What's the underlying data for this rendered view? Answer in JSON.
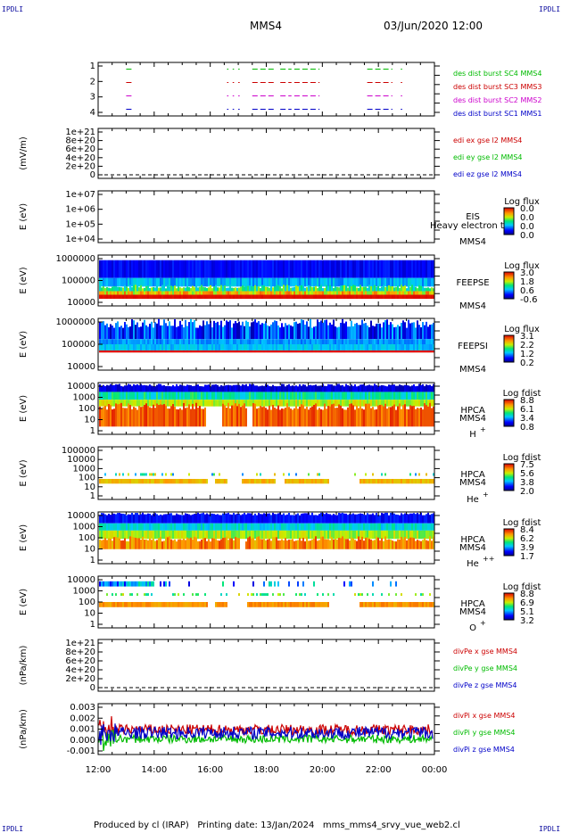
{
  "corner_label": "IPDLI",
  "header": {
    "spacecraft": "MMS4",
    "datetime": "03/Jun/2020 12:00"
  },
  "footer": {
    "text": "Produced by cl (IRAP)   Printing date: 13/Jan/2024   mms_mms4_srvy_vue_web2.cl"
  },
  "colors": {
    "sc1": "#0000c8",
    "sc2": "#cc00cc",
    "sc3": "#cc0000",
    "sc4": "#00bb00",
    "axis": "#000000"
  },
  "chart_data": {
    "type": "multi-panel time series and spectrograms",
    "x_ticks": [
      "12:00",
      "14:00",
      "16:00",
      "18:00",
      "20:00",
      "22:00",
      "00:00"
    ],
    "x_range_hours": [
      12,
      24
    ],
    "panels": [
      {
        "id": "burst",
        "type": "line",
        "ylabel": "",
        "ylim": [
          0.5,
          4.5
        ],
        "yticks": [
          "1",
          "2",
          "3",
          "4"
        ],
        "series": [
          {
            "name": "des dist burst SC1 MMS1",
            "level": 1,
            "color": "#0000c8",
            "intervals": [
              [
                13.0,
                13.2
              ],
              [
                16.6,
                16.65
              ],
              [
                16.8,
                16.85
              ],
              [
                17.0,
                17.05
              ],
              [
                17.5,
                18.3
              ],
              [
                18.5,
                18.9
              ],
              [
                19.0,
                19.9
              ],
              [
                21.6,
                22.5
              ],
              [
                22.8,
                22.85
              ]
            ]
          },
          {
            "name": "des dist burst SC2 MMS2",
            "level": 2,
            "color": "#cc00cc",
            "intervals": [
              [
                13.0,
                13.2
              ],
              [
                16.6,
                16.65
              ],
              [
                16.8,
                16.85
              ],
              [
                17.0,
                17.05
              ],
              [
                17.5,
                18.3
              ],
              [
                18.5,
                18.9
              ],
              [
                19.0,
                19.9
              ],
              [
                21.6,
                22.5
              ],
              [
                22.8,
                22.85
              ]
            ]
          },
          {
            "name": "des dist burst SC3 MMS3",
            "level": 3,
            "color": "#cc0000",
            "intervals": [
              [
                13.0,
                13.2
              ],
              [
                16.6,
                16.65
              ],
              [
                16.8,
                16.85
              ],
              [
                17.0,
                17.05
              ],
              [
                17.5,
                18.3
              ],
              [
                18.5,
                18.9
              ],
              [
                19.0,
                19.9
              ],
              [
                21.6,
                22.5
              ],
              [
                22.8,
                22.85
              ]
            ]
          },
          {
            "name": "des dist burst SC4 MMS4",
            "level": 4,
            "color": "#00bb00",
            "intervals": [
              [
                13.0,
                13.2
              ],
              [
                16.6,
                16.65
              ],
              [
                16.8,
                16.85
              ],
              [
                17.0,
                17.05
              ],
              [
                17.5,
                18.3
              ],
              [
                18.5,
                18.9
              ],
              [
                19.0,
                19.9
              ],
              [
                21.6,
                22.5
              ],
              [
                22.8,
                22.85
              ]
            ]
          }
        ]
      },
      {
        "id": "edi",
        "type": "line",
        "ylabel": "(mV/m)",
        "yticks": [
          "1e+21",
          "8e+20",
          "6e+20",
          "4e+20",
          "2e+20",
          "0"
        ],
        "zero_dashed": true,
        "legend": [
          {
            "text": "edi ex gse l2 MMS4",
            "color": "#cc0000"
          },
          {
            "text": "edi ey gse l2 MMS4",
            "color": "#00bb00"
          },
          {
            "text": "edi ez gse l2 MMS4",
            "color": "#0000c8"
          }
        ]
      },
      {
        "id": "eis",
        "type": "heatmap",
        "ylabel": "E (eV)",
        "yticks": [
          "1e+07",
          "1e+06",
          "1e+05",
          "1e+04"
        ],
        "instrument": "EIS",
        "spacecraft": "MMS4",
        "overlay_text": "Heavy electron tof",
        "colorbar": {
          "title": "Log flux",
          "ticks": [
            "0.0",
            "0.0",
            "0.0",
            "0.0"
          ]
        },
        "empty": true
      },
      {
        "id": "feepse",
        "type": "heatmap",
        "ylabel": "E (eV)",
        "yticks": [
          "1000000",
          "100000",
          "10000"
        ],
        "instrument": "FEEPSE",
        "spacecraft": "MMS4",
        "colorbar": {
          "title": "Log flux",
          "ticks": [
            "3.0",
            "1.8",
            "0.6",
            "-0.6"
          ]
        }
      },
      {
        "id": "feepsi",
        "type": "heatmap",
        "ylabel": "E (eV)",
        "yticks": [
          "1000000",
          "100000",
          "10000"
        ],
        "instrument": "FEEPSI",
        "spacecraft": "MMS4",
        "colorbar": {
          "title": "Log flux",
          "ticks": [
            "3.1",
            "2.2",
            "1.2",
            "0.2"
          ]
        }
      },
      {
        "id": "hpca_h",
        "type": "heatmap",
        "ylabel": "E (eV)",
        "yticks": [
          "10000",
          "1000",
          "100",
          "10",
          "1"
        ],
        "instrument": "HPCA",
        "spacecraft": "MMS4",
        "species": "H",
        "species_sup": "+",
        "colorbar": {
          "title": "Log fdist",
          "ticks": [
            "8.8",
            "6.1",
            "3.4",
            "0.8"
          ]
        }
      },
      {
        "id": "hpca_he1",
        "type": "heatmap",
        "ylabel": "E (eV)",
        "yticks": [
          "100000",
          "10000",
          "1000",
          "100",
          "10",
          "1"
        ],
        "instrument": "HPCA",
        "spacecraft": "MMS4",
        "species": "He",
        "species_sup": "+",
        "colorbar": {
          "title": "Log fdist",
          "ticks": [
            "7.5",
            "5.6",
            "3.8",
            "2.0"
          ]
        }
      },
      {
        "id": "hpca_he2",
        "type": "heatmap",
        "ylabel": "E (eV)",
        "yticks": [
          "10000",
          "1000",
          "100",
          "10",
          "1"
        ],
        "instrument": "HPCA",
        "spacecraft": "MMS4",
        "species": "He",
        "species_sup": "++",
        "colorbar": {
          "title": "Log fdist",
          "ticks": [
            "8.4",
            "6.2",
            "3.9",
            "1.7"
          ]
        }
      },
      {
        "id": "hpca_o",
        "type": "heatmap",
        "ylabel": "E (eV)",
        "yticks": [
          "10000",
          "1000",
          "100",
          "10",
          "1"
        ],
        "instrument": "HPCA",
        "spacecraft": "MMS4",
        "species": "O",
        "species_sup": "+",
        "colorbar": {
          "title": "Log fdist",
          "ticks": [
            "8.8",
            "6.9",
            "5.1",
            "3.2"
          ]
        }
      },
      {
        "id": "divpe",
        "type": "line",
        "ylabel": "(nPa/km)",
        "yticks": [
          "1e+21",
          "8e+20",
          "6e+20",
          "4e+20",
          "2e+20",
          "0"
        ],
        "zero_dashed": true,
        "legend": [
          {
            "text": "divPe x gse MMS4",
            "color": "#cc0000"
          },
          {
            "text": "divPe y gse MMS4",
            "color": "#00bb00"
          },
          {
            "text": "divPe z gse MMS4",
            "color": "#0000c8"
          }
        ]
      },
      {
        "id": "divpi",
        "type": "line",
        "ylabel": "(nPa/km)",
        "ylim": [
          -0.0017,
          0.0032
        ],
        "yticks": [
          "0.003",
          "0.002",
          "0.001",
          "0.000",
          "-0.001"
        ],
        "legend": [
          {
            "text": "divPi x gse MMS4",
            "color": "#cc0000"
          },
          {
            "text": "divPi y gse MMS4",
            "color": "#00bb00"
          },
          {
            "text": "divPi z gse MMS4",
            "color": "#0000c8"
          }
        ],
        "series_levels": [
          {
            "name": "divPi x gse MMS4",
            "color": "#cc0000",
            "mean": 0.0007,
            "spread": 0.0005
          },
          {
            "name": "divPi y gse MMS4",
            "color": "#00bb00",
            "mean": -0.0002,
            "spread": 0.0004
          },
          {
            "name": "divPi z gse MMS4",
            "color": "#0000c8",
            "mean": 0.0004,
            "spread": 0.0006
          }
        ]
      }
    ]
  }
}
